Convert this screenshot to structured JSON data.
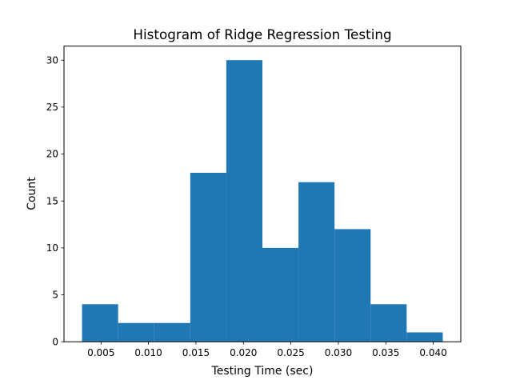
{
  "chart_data": {
    "type": "bar",
    "subtype": "histogram",
    "title": "Histogram of Ridge Regression Testing",
    "xlabel": "Testing Time (sec)",
    "ylabel": "Count",
    "bin_edges": [
      0.003,
      0.0068,
      0.0106,
      0.0144,
      0.0182,
      0.022,
      0.0258,
      0.0296,
      0.0334,
      0.0372,
      0.041
    ],
    "values": [
      4,
      2,
      2,
      18,
      30,
      10,
      17,
      12,
      4,
      1
    ],
    "xlim": [
      0.0011,
      0.0429
    ],
    "ylim": [
      0,
      31.5
    ],
    "xticks": [
      0.005,
      0.01,
      0.015,
      0.02,
      0.025,
      0.03,
      0.035,
      0.04
    ],
    "xtick_labels": [
      "0.005",
      "0.010",
      "0.015",
      "0.020",
      "0.025",
      "0.030",
      "0.035",
      "0.040"
    ],
    "yticks": [
      0,
      5,
      10,
      15,
      20,
      25,
      30
    ],
    "ytick_labels": [
      "0",
      "5",
      "10",
      "15",
      "20",
      "25",
      "30"
    ],
    "bar_color": "#1f77b4",
    "grid": false,
    "legend": false
  }
}
